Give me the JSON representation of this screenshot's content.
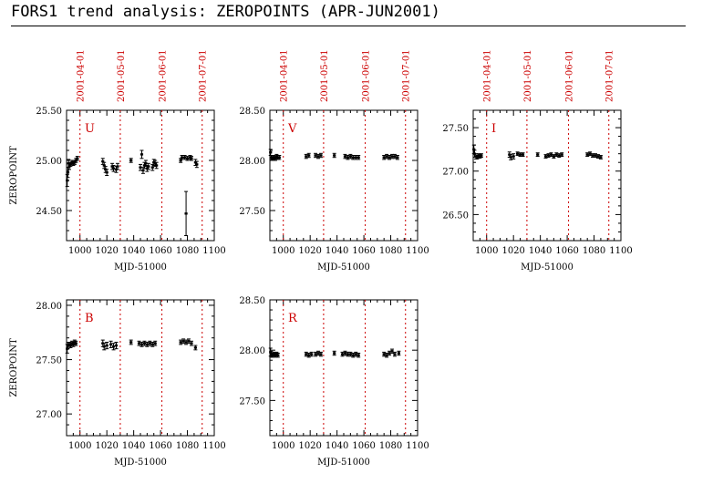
{
  "page_title": "FORS1 trend analysis: ZEROPOINTS (APR-JUN2001)",
  "colors": {
    "marker_lines": "#cc0000",
    "axes": "#000000",
    "points": "#000000"
  },
  "chart_data": [
    {
      "type": "scatter",
      "panel_label": "U",
      "xlabel": "MJD-51000",
      "ylabel": "ZEROPOINT",
      "xlim": [
        990,
        1100
      ],
      "ylim": [
        24.2,
        25.5
      ],
      "yticks": [
        25.5,
        25.0,
        24.5
      ],
      "ytick_labels": [
        "25.50",
        "25.00",
        "24.50"
      ],
      "xticks": [
        1000,
        1020,
        1040,
        1060,
        1080,
        1100
      ],
      "xtick_labels": [
        "1000",
        "1020",
        "1040",
        "1060",
        "1080",
        "1100"
      ],
      "date_markers": [
        {
          "x": 1000,
          "label": "2001-04-01"
        },
        {
          "x": 1030,
          "label": "2001-05-01"
        },
        {
          "x": 1061,
          "label": "2001-06-01"
        },
        {
          "x": 1091,
          "label": "2001-07-01"
        }
      ],
      "points": [
        {
          "x": 990.5,
          "y": 24.8,
          "err": 0.06
        },
        {
          "x": 991.0,
          "y": 24.88,
          "err": 0.05
        },
        {
          "x": 991.5,
          "y": 24.97,
          "err": 0.04
        },
        {
          "x": 992.0,
          "y": 24.94,
          "err": 0.03
        },
        {
          "x": 993.0,
          "y": 24.96,
          "err": 0.02
        },
        {
          "x": 994.0,
          "y": 24.98,
          "err": 0.02
        },
        {
          "x": 995.0,
          "y": 24.97,
          "err": 0.02
        },
        {
          "x": 996.0,
          "y": 24.98,
          "err": 0.02
        },
        {
          "x": 997.0,
          "y": 25.0,
          "err": 0.02
        },
        {
          "x": 998.0,
          "y": 25.02,
          "err": 0.02
        },
        {
          "x": 1017.0,
          "y": 24.99,
          "err": 0.03
        },
        {
          "x": 1018.0,
          "y": 24.95,
          "err": 0.03
        },
        {
          "x": 1019.0,
          "y": 24.91,
          "err": 0.03
        },
        {
          "x": 1020.0,
          "y": 24.88,
          "err": 0.03
        },
        {
          "x": 1024.0,
          "y": 24.94,
          "err": 0.03
        },
        {
          "x": 1025.0,
          "y": 24.92,
          "err": 0.03
        },
        {
          "x": 1027.0,
          "y": 24.91,
          "err": 0.03
        },
        {
          "x": 1028.0,
          "y": 24.94,
          "err": 0.03
        },
        {
          "x": 1038.0,
          "y": 25.0,
          "err": 0.02
        },
        {
          "x": 1045.0,
          "y": 24.93,
          "err": 0.03
        },
        {
          "x": 1046.0,
          "y": 25.06,
          "err": 0.04
        },
        {
          "x": 1047.0,
          "y": 24.9,
          "err": 0.03
        },
        {
          "x": 1048.0,
          "y": 24.95,
          "err": 0.03
        },
        {
          "x": 1049.0,
          "y": 24.97,
          "err": 0.03
        },
        {
          "x": 1050.0,
          "y": 24.92,
          "err": 0.03
        },
        {
          "x": 1051.0,
          "y": 24.94,
          "err": 0.03
        },
        {
          "x": 1054.0,
          "y": 24.93,
          "err": 0.03
        },
        {
          "x": 1055.0,
          "y": 24.98,
          "err": 0.03
        },
        {
          "x": 1056.0,
          "y": 24.97,
          "err": 0.03
        },
        {
          "x": 1057.0,
          "y": 24.95,
          "err": 0.03
        },
        {
          "x": 1075.0,
          "y": 25.0,
          "err": 0.02
        },
        {
          "x": 1076.0,
          "y": 25.03,
          "err": 0.02
        },
        {
          "x": 1078.0,
          "y": 25.03,
          "err": 0.02
        },
        {
          "x": 1079.0,
          "y": 24.47,
          "err": 0.22
        },
        {
          "x": 1080.0,
          "y": 25.02,
          "err": 0.02
        },
        {
          "x": 1082.0,
          "y": 25.03,
          "err": 0.02
        },
        {
          "x": 1083.0,
          "y": 25.02,
          "err": 0.02
        },
        {
          "x": 1086.0,
          "y": 24.98,
          "err": 0.03
        },
        {
          "x": 1087.0,
          "y": 24.96,
          "err": 0.03
        }
      ]
    },
    {
      "type": "scatter",
      "panel_label": "V",
      "xlabel": "MJD-51000",
      "ylabel": "",
      "xlim": [
        990,
        1100
      ],
      "ylim": [
        27.2,
        28.5
      ],
      "yticks": [
        28.5,
        28.0,
        27.5
      ],
      "ytick_labels": [
        "28.50",
        "28.00",
        "27.50"
      ],
      "xticks": [
        1000,
        1020,
        1040,
        1060,
        1080,
        1100
      ],
      "xtick_labels": [
        "1000",
        "1020",
        "1040",
        "1060",
        "1080",
        "1100"
      ],
      "date_markers": [
        {
          "x": 1000,
          "label": "2001-04-01"
        },
        {
          "x": 1030,
          "label": "2001-05-01"
        },
        {
          "x": 1061,
          "label": "2001-06-01"
        },
        {
          "x": 1091,
          "label": "2001-07-01"
        }
      ],
      "points": [
        {
          "x": 990.5,
          "y": 28.08,
          "err": 0.03
        },
        {
          "x": 991.0,
          "y": 28.03,
          "err": 0.02
        },
        {
          "x": 992.0,
          "y": 28.02,
          "err": 0.02
        },
        {
          "x": 993.0,
          "y": 28.03,
          "err": 0.02
        },
        {
          "x": 994.0,
          "y": 28.02,
          "err": 0.02
        },
        {
          "x": 995.0,
          "y": 28.04,
          "err": 0.02
        },
        {
          "x": 996.0,
          "y": 28.03,
          "err": 0.02
        },
        {
          "x": 997.0,
          "y": 28.03,
          "err": 0.02
        },
        {
          "x": 1017.0,
          "y": 28.04,
          "err": 0.02
        },
        {
          "x": 1019.0,
          "y": 28.05,
          "err": 0.02
        },
        {
          "x": 1024.0,
          "y": 28.05,
          "err": 0.02
        },
        {
          "x": 1026.0,
          "y": 28.04,
          "err": 0.02
        },
        {
          "x": 1028.0,
          "y": 28.05,
          "err": 0.02
        },
        {
          "x": 1038.0,
          "y": 28.05,
          "err": 0.02
        },
        {
          "x": 1046.0,
          "y": 28.04,
          "err": 0.02
        },
        {
          "x": 1048.0,
          "y": 28.03,
          "err": 0.02
        },
        {
          "x": 1050.0,
          "y": 28.04,
          "err": 0.02
        },
        {
          "x": 1052.0,
          "y": 28.03,
          "err": 0.02
        },
        {
          "x": 1054.0,
          "y": 28.03,
          "err": 0.02
        },
        {
          "x": 1056.0,
          "y": 28.03,
          "err": 0.02
        },
        {
          "x": 1075.0,
          "y": 28.03,
          "err": 0.02
        },
        {
          "x": 1077.0,
          "y": 28.04,
          "err": 0.02
        },
        {
          "x": 1079.0,
          "y": 28.03,
          "err": 0.02
        },
        {
          "x": 1081.0,
          "y": 28.04,
          "err": 0.02
        },
        {
          "x": 1083.0,
          "y": 28.04,
          "err": 0.02
        },
        {
          "x": 1085.0,
          "y": 28.03,
          "err": 0.02
        }
      ]
    },
    {
      "type": "scatter",
      "panel_label": "I",
      "xlabel": "MJD-51000",
      "ylabel": "",
      "xlim": [
        990,
        1100
      ],
      "ylim": [
        26.2,
        27.7
      ],
      "yticks": [
        27.5,
        27.0,
        26.5
      ],
      "ytick_labels": [
        "27.50",
        "27.00",
        "26.50"
      ],
      "xticks": [
        1000,
        1020,
        1040,
        1060,
        1080,
        1100
      ],
      "xtick_labels": [
        "1000",
        "1020",
        "1040",
        "1060",
        "1080",
        "1100"
      ],
      "date_markers": [
        {
          "x": 1000,
          "label": "2001-04-01"
        },
        {
          "x": 1030,
          "label": "2001-05-01"
        },
        {
          "x": 1061,
          "label": "2001-06-01"
        },
        {
          "x": 1091,
          "label": "2001-07-01"
        }
      ],
      "points": [
        {
          "x": 990.5,
          "y": 27.25,
          "err": 0.05
        },
        {
          "x": 991.0,
          "y": 27.2,
          "err": 0.04
        },
        {
          "x": 992.0,
          "y": 27.17,
          "err": 0.03
        },
        {
          "x": 993.0,
          "y": 27.16,
          "err": 0.02
        },
        {
          "x": 994.0,
          "y": 27.18,
          "err": 0.02
        },
        {
          "x": 995.0,
          "y": 27.17,
          "err": 0.02
        },
        {
          "x": 996.0,
          "y": 27.18,
          "err": 0.02
        },
        {
          "x": 1017.0,
          "y": 27.19,
          "err": 0.03
        },
        {
          "x": 1018.0,
          "y": 27.16,
          "err": 0.03
        },
        {
          "x": 1020.0,
          "y": 27.17,
          "err": 0.03
        },
        {
          "x": 1023.0,
          "y": 27.2,
          "err": 0.02
        },
        {
          "x": 1025.0,
          "y": 27.19,
          "err": 0.02
        },
        {
          "x": 1027.0,
          "y": 27.19,
          "err": 0.02
        },
        {
          "x": 1038.0,
          "y": 27.19,
          "err": 0.02
        },
        {
          "x": 1044.0,
          "y": 27.17,
          "err": 0.02
        },
        {
          "x": 1046.0,
          "y": 27.18,
          "err": 0.02
        },
        {
          "x": 1048.0,
          "y": 27.19,
          "err": 0.02
        },
        {
          "x": 1050.0,
          "y": 27.17,
          "err": 0.02
        },
        {
          "x": 1052.0,
          "y": 27.19,
          "err": 0.02
        },
        {
          "x": 1054.0,
          "y": 27.18,
          "err": 0.02
        },
        {
          "x": 1056.0,
          "y": 27.19,
          "err": 0.02
        },
        {
          "x": 1075.0,
          "y": 27.19,
          "err": 0.02
        },
        {
          "x": 1077.0,
          "y": 27.2,
          "err": 0.02
        },
        {
          "x": 1079.0,
          "y": 27.18,
          "err": 0.02
        },
        {
          "x": 1081.0,
          "y": 27.18,
          "err": 0.02
        },
        {
          "x": 1083.0,
          "y": 27.17,
          "err": 0.02
        },
        {
          "x": 1085.0,
          "y": 27.16,
          "err": 0.02
        }
      ]
    },
    {
      "type": "scatter",
      "panel_label": "B",
      "xlabel": "MJD-51000",
      "ylabel": "ZEROPOINT",
      "xlim": [
        990,
        1100
      ],
      "ylim": [
        26.8,
        28.05
      ],
      "yticks": [
        28.0,
        27.5,
        27.0
      ],
      "ytick_labels": [
        "28.00",
        "27.50",
        "27.00"
      ],
      "xticks": [
        1000,
        1020,
        1040,
        1060,
        1080,
        1100
      ],
      "xtick_labels": [
        "1000",
        "1020",
        "1040",
        "1060",
        "1080",
        "1100"
      ],
      "date_markers": [
        {
          "x": 1000,
          "label": "2001-04-01"
        },
        {
          "x": 1030,
          "label": "2001-05-01"
        },
        {
          "x": 1061,
          "label": "2001-06-01"
        },
        {
          "x": 1091,
          "label": "2001-07-01"
        }
      ],
      "points": [
        {
          "x": 990.5,
          "y": 27.6,
          "err": 0.04
        },
        {
          "x": 991.0,
          "y": 27.63,
          "err": 0.03
        },
        {
          "x": 992.0,
          "y": 27.64,
          "err": 0.02
        },
        {
          "x": 993.0,
          "y": 27.63,
          "err": 0.02
        },
        {
          "x": 994.0,
          "y": 27.65,
          "err": 0.02
        },
        {
          "x": 995.0,
          "y": 27.64,
          "err": 0.02
        },
        {
          "x": 996.0,
          "y": 27.66,
          "err": 0.02
        },
        {
          "x": 997.0,
          "y": 27.65,
          "err": 0.02
        },
        {
          "x": 1017.0,
          "y": 27.65,
          "err": 0.03
        },
        {
          "x": 1018.0,
          "y": 27.62,
          "err": 0.03
        },
        {
          "x": 1020.0,
          "y": 27.63,
          "err": 0.03
        },
        {
          "x": 1023.0,
          "y": 27.64,
          "err": 0.03
        },
        {
          "x": 1025.0,
          "y": 27.62,
          "err": 0.03
        },
        {
          "x": 1027.0,
          "y": 27.63,
          "err": 0.03
        },
        {
          "x": 1038.0,
          "y": 27.66,
          "err": 0.02
        },
        {
          "x": 1044.0,
          "y": 27.65,
          "err": 0.02
        },
        {
          "x": 1046.0,
          "y": 27.64,
          "err": 0.02
        },
        {
          "x": 1048.0,
          "y": 27.65,
          "err": 0.02
        },
        {
          "x": 1050.0,
          "y": 27.64,
          "err": 0.02
        },
        {
          "x": 1052.0,
          "y": 27.65,
          "err": 0.02
        },
        {
          "x": 1054.0,
          "y": 27.64,
          "err": 0.02
        },
        {
          "x": 1056.0,
          "y": 27.65,
          "err": 0.02
        },
        {
          "x": 1075.0,
          "y": 27.66,
          "err": 0.02
        },
        {
          "x": 1077.0,
          "y": 27.67,
          "err": 0.02
        },
        {
          "x": 1079.0,
          "y": 27.66,
          "err": 0.02
        },
        {
          "x": 1081.0,
          "y": 27.67,
          "err": 0.02
        },
        {
          "x": 1083.0,
          "y": 27.65,
          "err": 0.02
        },
        {
          "x": 1086.0,
          "y": 27.61,
          "err": 0.02
        }
      ]
    },
    {
      "type": "scatter",
      "panel_label": "R",
      "xlabel": "MJD-51000",
      "ylabel": "",
      "xlim": [
        990,
        1100
      ],
      "ylim": [
        27.15,
        28.5
      ],
      "yticks": [
        28.5,
        28.0,
        27.5
      ],
      "ytick_labels": [
        "28.50",
        "28.00",
        "27.50"
      ],
      "xticks": [
        1000,
        1020,
        1040,
        1060,
        1080,
        1100
      ],
      "xtick_labels": [
        "1000",
        "1020",
        "1040",
        "1060",
        "1080",
        "1100"
      ],
      "date_markers": [
        {
          "x": 1000,
          "label": "2001-04-01"
        },
        {
          "x": 1030,
          "label": "2001-05-01"
        },
        {
          "x": 1061,
          "label": "2001-06-01"
        },
        {
          "x": 1091,
          "label": "2001-07-01"
        }
      ],
      "points": [
        {
          "x": 990.5,
          "y": 27.98,
          "err": 0.04
        },
        {
          "x": 991.0,
          "y": 27.96,
          "err": 0.03
        },
        {
          "x": 992.0,
          "y": 27.95,
          "err": 0.02
        },
        {
          "x": 993.0,
          "y": 27.96,
          "err": 0.02
        },
        {
          "x": 994.0,
          "y": 27.95,
          "err": 0.02
        },
        {
          "x": 995.0,
          "y": 27.96,
          "err": 0.02
        },
        {
          "x": 996.0,
          "y": 27.95,
          "err": 0.02
        },
        {
          "x": 1017.0,
          "y": 27.96,
          "err": 0.02
        },
        {
          "x": 1019.0,
          "y": 27.95,
          "err": 0.02
        },
        {
          "x": 1021.0,
          "y": 27.96,
          "err": 0.02
        },
        {
          "x": 1024.0,
          "y": 27.96,
          "err": 0.02
        },
        {
          "x": 1026.0,
          "y": 27.97,
          "err": 0.02
        },
        {
          "x": 1028.0,
          "y": 27.96,
          "err": 0.02
        },
        {
          "x": 1038.0,
          "y": 27.97,
          "err": 0.02
        },
        {
          "x": 1044.0,
          "y": 27.96,
          "err": 0.02
        },
        {
          "x": 1046.0,
          "y": 27.97,
          "err": 0.02
        },
        {
          "x": 1048.0,
          "y": 27.96,
          "err": 0.02
        },
        {
          "x": 1050.0,
          "y": 27.96,
          "err": 0.02
        },
        {
          "x": 1052.0,
          "y": 27.95,
          "err": 0.02
        },
        {
          "x": 1054.0,
          "y": 27.96,
          "err": 0.02
        },
        {
          "x": 1056.0,
          "y": 27.95,
          "err": 0.02
        },
        {
          "x": 1075.0,
          "y": 27.96,
          "err": 0.02
        },
        {
          "x": 1077.0,
          "y": 27.95,
          "err": 0.02
        },
        {
          "x": 1079.0,
          "y": 27.97,
          "err": 0.02
        },
        {
          "x": 1081.0,
          "y": 27.99,
          "err": 0.02
        },
        {
          "x": 1083.0,
          "y": 27.96,
          "err": 0.02
        },
        {
          "x": 1086.0,
          "y": 27.97,
          "err": 0.02
        }
      ]
    }
  ]
}
